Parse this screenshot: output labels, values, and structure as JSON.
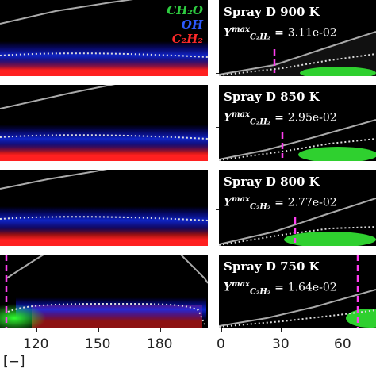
{
  "legend": {
    "ch2o": "CH₂O",
    "oh": "OH",
    "c2h2": "C₂H₂",
    "ch2o_color": "#2ecc40",
    "oh_color": "#2d5bff",
    "c2h2_color": "#ff2a2a"
  },
  "rows": [
    {
      "title": "Spray D 900 K",
      "ymax_value": "3.11e-02"
    },
    {
      "title": "Spray D 850 K",
      "ymax_value": "2.95e-02"
    },
    {
      "title": "Spray D 800 K",
      "ymax_value": "2.77e-02"
    },
    {
      "title": "Spray D 750 K",
      "ymax_value": "1.64e-02"
    }
  ],
  "ymax_label": "Y",
  "ymax_sup": "max",
  "ymax_sub": "C₂H₂",
  "left_axis": {
    "ticks": [
      "120",
      "150",
      "180"
    ],
    "unit": "[−]"
  },
  "right_axis": {
    "ticks": [
      "0",
      "30",
      "60"
    ]
  }
}
